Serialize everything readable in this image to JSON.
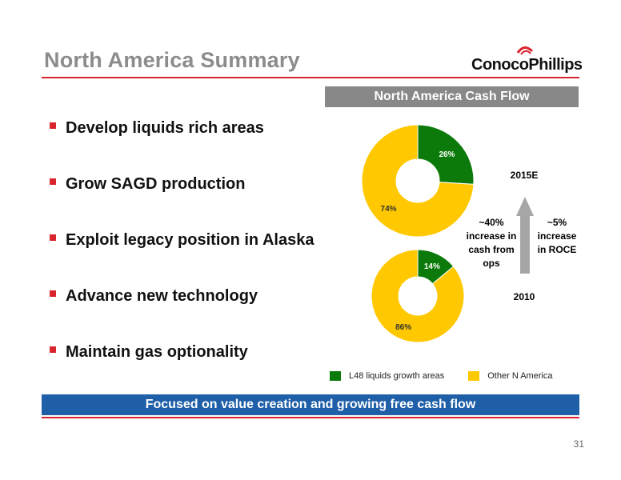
{
  "header": {
    "title": "North America Summary",
    "logo_text": "ConocoPhillips"
  },
  "bullets": [
    "Develop liquids rich areas",
    "Grow SAGD production",
    "Exploit legacy position in Alaska",
    "Advance new technology",
    "Maintain gas optionality"
  ],
  "chart_panel": {
    "title": "North America Cash Flow",
    "label_2015": "2015E",
    "label_2010": "2010",
    "note_left": [
      "~40%",
      "increase in",
      "cash from",
      "ops"
    ],
    "note_right": [
      "~5%",
      "increase",
      "in ROCE"
    ]
  },
  "chart_data": [
    {
      "type": "pie",
      "subtitle": "2015E",
      "categories": [
        "L48 liquids growth areas",
        "Other N America"
      ],
      "values": [
        26,
        74
      ],
      "labels": [
        "26%",
        "74%"
      ],
      "colors": [
        "#0b7a0b",
        "#ffc800"
      ],
      "legend": "bottom"
    },
    {
      "type": "pie",
      "subtitle": "2010",
      "categories": [
        "L48 liquids growth areas",
        "Other N America"
      ],
      "values": [
        14,
        86
      ],
      "labels": [
        "14%",
        "86%"
      ],
      "colors": [
        "#0b7a0b",
        "#ffc800"
      ],
      "legend": "bottom"
    }
  ],
  "legend": [
    {
      "label": "L48 liquids growth areas",
      "color": "#0b7a0b"
    },
    {
      "label": "Other N America",
      "color": "#ffc800"
    }
  ],
  "footer": {
    "banner": "Focused on value creation and growing free cash flow",
    "page_number": "31"
  },
  "colors": {
    "accent_red": "#d9232d",
    "banner_blue": "#1f5fa8",
    "header_gray": "#888888",
    "arrow_gray": "#a6a6a6"
  }
}
